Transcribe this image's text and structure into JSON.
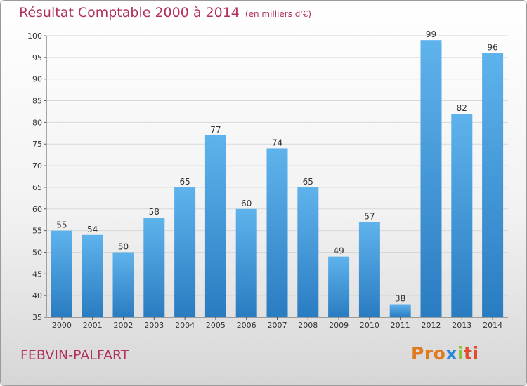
{
  "title": "Résultat Comptable 2000 à 2014",
  "subtitle": "(en milliers d'€)",
  "place": "FEBVIN-PALFART",
  "logo": {
    "p1": "Pro",
    "p2": "x",
    "p3": "i",
    "p4": "ti"
  },
  "colors": {
    "bar_top": "#5fb3ec",
    "bar_bottom": "#2a7cc1",
    "title": "#b0305f",
    "grid": "#d8d8d8"
  },
  "chart_data": {
    "type": "bar",
    "categories": [
      "2000",
      "2001",
      "2002",
      "2003",
      "2004",
      "2005",
      "2006",
      "2007",
      "2008",
      "2009",
      "2010",
      "2011",
      "2012",
      "2013",
      "2014"
    ],
    "values": [
      55,
      54,
      50,
      58,
      65,
      77,
      60,
      74,
      65,
      49,
      57,
      38,
      99,
      82,
      96
    ],
    "ylim": [
      35,
      100
    ],
    "yticks": [
      35,
      40,
      45,
      50,
      55,
      60,
      65,
      70,
      75,
      80,
      85,
      90,
      95,
      100
    ],
    "grid": true
  }
}
